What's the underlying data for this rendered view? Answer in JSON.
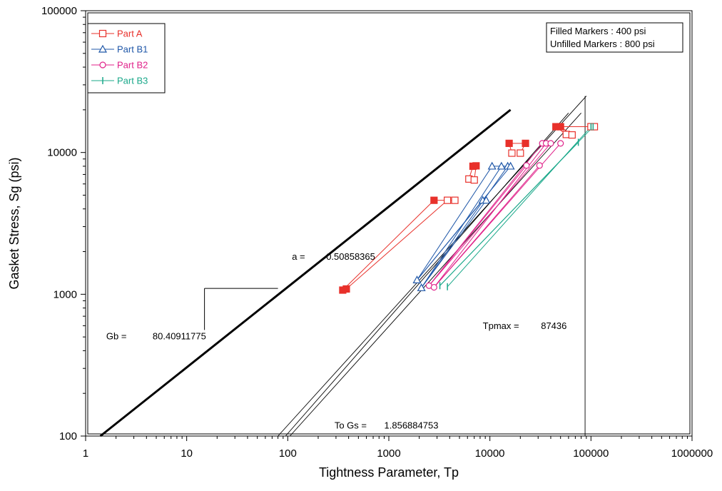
{
  "chart_data": {
    "type": "scatter",
    "xlabel": "Tightness Parameter, Tp",
    "ylabel": "Gasket Stress, Sg (psi)",
    "x_scale": "log",
    "y_scale": "log",
    "xlim": [
      1,
      1000000
    ],
    "ylim": [
      100,
      100000
    ],
    "x_ticks": [
      1,
      10,
      100,
      1000,
      10000,
      100000,
      1000000
    ],
    "x_tick_labels": [
      "1",
      "10",
      "100",
      "1000",
      "10000",
      "100000",
      "1000000"
    ],
    "y_ticks": [
      100,
      1000,
      10000,
      100000
    ],
    "y_tick_labels": [
      "100",
      "1000",
      "10000",
      "100000"
    ],
    "grid": false,
    "legend_position": "top-left",
    "note_box": {
      "position": "top-right",
      "lines": [
        "Filled Markers : 400 psi",
        "Unfilled Markers : 800 psi"
      ]
    },
    "series": [
      {
        "name": "Part A",
        "color": "#e8302a",
        "marker": "square",
        "points": [
          {
            "x": 350,
            "y": 1070,
            "filled": true
          },
          {
            "x": 380,
            "y": 1090,
            "filled": true
          },
          {
            "x": 2800,
            "y": 4600,
            "filled": true
          },
          {
            "x": 6800,
            "y": 8000,
            "filled": true
          },
          {
            "x": 7300,
            "y": 8050,
            "filled": true
          },
          {
            "x": 15500,
            "y": 11600,
            "filled": true
          },
          {
            "x": 22500,
            "y": 11600,
            "filled": true
          },
          {
            "x": 45000,
            "y": 15200,
            "filled": true
          },
          {
            "x": 50000,
            "y": 15200,
            "filled": true
          },
          {
            "x": 3800,
            "y": 4600,
            "filled": false
          },
          {
            "x": 4500,
            "y": 4600,
            "filled": false
          },
          {
            "x": 6200,
            "y": 6500,
            "filled": false
          },
          {
            "x": 7000,
            "y": 6400,
            "filled": false
          },
          {
            "x": 16500,
            "y": 9900,
            "filled": false
          },
          {
            "x": 20000,
            "y": 9900,
            "filled": false
          },
          {
            "x": 57000,
            "y": 13400,
            "filled": false
          },
          {
            "x": 65000,
            "y": 13300,
            "filled": false
          },
          {
            "x": 100000,
            "y": 15200,
            "filled": false
          },
          {
            "x": 108000,
            "y": 15200,
            "filled": false
          }
        ]
      },
      {
        "name": "Part B1",
        "color": "#1f57a8",
        "marker": "triangle",
        "points": [
          {
            "x": 1900,
            "y": 1260,
            "filled": false
          },
          {
            "x": 2100,
            "y": 1110,
            "filled": false
          },
          {
            "x": 8500,
            "y": 4600,
            "filled": false
          },
          {
            "x": 9200,
            "y": 4600,
            "filled": false
          },
          {
            "x": 10500,
            "y": 8000,
            "filled": false
          },
          {
            "x": 13000,
            "y": 8000,
            "filled": false
          },
          {
            "x": 15000,
            "y": 8000,
            "filled": false
          },
          {
            "x": 16000,
            "y": 8000,
            "filled": false
          }
        ]
      },
      {
        "name": "Part B2",
        "color": "#e0228a",
        "marker": "circle",
        "points": [
          {
            "x": 2500,
            "y": 1150,
            "filled": false
          },
          {
            "x": 2800,
            "y": 1120,
            "filled": false
          },
          {
            "x": 23000,
            "y": 8100,
            "filled": false
          },
          {
            "x": 31000,
            "y": 8100,
            "filled": false
          },
          {
            "x": 33000,
            "y": 11600,
            "filled": false
          },
          {
            "x": 36000,
            "y": 11600,
            "filled": false
          },
          {
            "x": 40000,
            "y": 11600,
            "filled": false
          },
          {
            "x": 50000,
            "y": 11600,
            "filled": false
          }
        ]
      },
      {
        "name": "Part B3",
        "color": "#1aa88a",
        "marker": "tick",
        "points": [
          {
            "x": 3200,
            "y": 1150,
            "filled": false
          },
          {
            "x": 3800,
            "y": 1130,
            "filled": false
          },
          {
            "x": 75000,
            "y": 11800,
            "filled": false
          },
          {
            "x": 100000,
            "y": 15200,
            "filled": false
          },
          {
            "x": 105000,
            "y": 15200,
            "filled": false
          }
        ]
      }
    ],
    "connector_segments": [
      {
        "series": "Part A",
        "from": [
          350,
          1070
        ],
        "to": [
          2800,
          4600
        ]
      },
      {
        "series": "Part A",
        "from": [
          380,
          1090
        ],
        "to": [
          3800,
          4600
        ]
      },
      {
        "series": "Part A",
        "from": [
          2800,
          4600
        ],
        "to": [
          4500,
          4600
        ]
      },
      {
        "series": "Part A",
        "from": [
          6200,
          6500
        ],
        "to": [
          6800,
          8000
        ]
      },
      {
        "series": "Part A",
        "from": [
          7000,
          6400
        ],
        "to": [
          7300,
          8050
        ]
      },
      {
        "series": "Part A",
        "from": [
          15500,
          11600
        ],
        "to": [
          16500,
          9900
        ]
      },
      {
        "series": "Part A",
        "from": [
          22500,
          11600
        ],
        "to": [
          20000,
          9900
        ]
      },
      {
        "series": "Part A",
        "from": [
          15500,
          11600
        ],
        "to": [
          22500,
          11600
        ]
      },
      {
        "series": "Part A",
        "from": [
          45000,
          15200
        ],
        "to": [
          57000,
          13400
        ]
      },
      {
        "series": "Part A",
        "from": [
          50000,
          15200
        ],
        "to": [
          65000,
          13300
        ]
      },
      {
        "series": "Part A",
        "from": [
          50000,
          15200
        ],
        "to": [
          100000,
          15200
        ]
      },
      {
        "series": "Part A",
        "from": [
          100000,
          15200
        ],
        "to": [
          108000,
          15200
        ]
      },
      {
        "series": "Part B1",
        "from": [
          1900,
          1260
        ],
        "to": [
          8500,
          4600
        ]
      },
      {
        "series": "Part B1",
        "from": [
          2100,
          1110
        ],
        "to": [
          9200,
          4600
        ]
      },
      {
        "series": "Part B1",
        "from": [
          1900,
          1260
        ],
        "to": [
          10500,
          8000
        ]
      },
      {
        "series": "Part B1",
        "from": [
          2100,
          1110
        ],
        "to": [
          13000,
          8000
        ]
      },
      {
        "series": "Part B1",
        "from": [
          2100,
          1110
        ],
        "to": [
          15000,
          8000
        ]
      },
      {
        "series": "Part B1",
        "from": [
          1900,
          1260
        ],
        "to": [
          16000,
          8000
        ]
      },
      {
        "series": "Part B1",
        "from": [
          10500,
          8000
        ],
        "to": [
          16000,
          8000
        ]
      },
      {
        "series": "Part B2",
        "from": [
          2500,
          1150
        ],
        "to": [
          33000,
          11600
        ]
      },
      {
        "series": "Part B2",
        "from": [
          2800,
          1120
        ],
        "to": [
          36000,
          11600
        ]
      },
      {
        "series": "Part B2",
        "from": [
          2500,
          1150
        ],
        "to": [
          40000,
          11600
        ]
      },
      {
        "series": "Part B2",
        "from": [
          2800,
          1120
        ],
        "to": [
          50000,
          11600
        ]
      },
      {
        "series": "Part B2",
        "from": [
          2500,
          1150
        ],
        "to": [
          23000,
          8100
        ]
      },
      {
        "series": "Part B2",
        "from": [
          2800,
          1120
        ],
        "to": [
          31000,
          8100
        ]
      },
      {
        "series": "Part B2",
        "from": [
          2500,
          1150
        ],
        "to": [
          2800,
          1120
        ]
      },
      {
        "series": "Part B3",
        "from": [
          3200,
          1150
        ],
        "to": [
          75000,
          11800
        ]
      },
      {
        "series": "Part B3",
        "from": [
          3800,
          1130
        ],
        "to": [
          100000,
          15200
        ]
      },
      {
        "series": "Part B3",
        "from": [
          3200,
          1150
        ],
        "to": [
          105000,
          15200
        ]
      }
    ],
    "reference_lines": [
      {
        "name": "gb-fit-line",
        "from": [
          1.4,
          100
        ],
        "to": [
          16000,
          20000
        ],
        "weight": "bold"
      },
      {
        "name": "to-gs-line-1",
        "from": [
          80,
          100
        ],
        "to": [
          90000,
          25000
        ]
      },
      {
        "name": "to-gs-line-2",
        "from": [
          95,
          100
        ],
        "to": [
          60000,
          19000
        ]
      },
      {
        "name": "to-gs-line-3",
        "from": [
          105,
          100
        ],
        "to": [
          80000,
          19000
        ]
      },
      {
        "name": "tpmax-line",
        "from": [
          87436,
          100
        ],
        "to": [
          87436,
          25000
        ]
      }
    ],
    "slope_indicator": {
      "corner": [
        15,
        1100
      ],
      "horizontal_end": [
        80,
        1100
      ],
      "vertical_end": [
        15,
        560
      ]
    },
    "annotations": [
      {
        "label": "a =",
        "value": "0.50858365",
        "x_label": 110,
        "x_value": 240,
        "y": 1750
      },
      {
        "label": "Gb =",
        "value": "80.40911775",
        "x_label": 1.6,
        "x_value": 4.6,
        "y": 480
      },
      {
        "label": "Tpmax =",
        "value": "87436",
        "x_label": 8500,
        "x_value": 32000,
        "y": 570
      },
      {
        "label": "To Gs =",
        "value": "1.856884753",
        "x_label": 290,
        "x_value": 900,
        "y": 113
      }
    ]
  }
}
